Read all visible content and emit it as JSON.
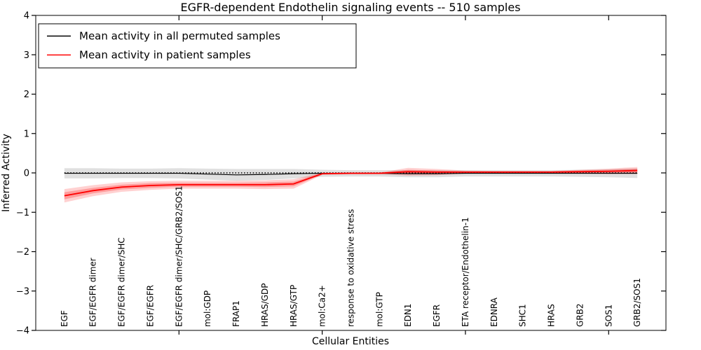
{
  "figure": {
    "title": "EGFR-dependent Endothelin signaling events -- 510 samples"
  },
  "chart_data": {
    "type": "line",
    "title": "EGFR-dependent Endothelin signaling events -- 510 samples",
    "xlabel": "Cellular Entities",
    "ylabel": "Inferred Activity",
    "xlim": [
      0,
      22
    ],
    "ylim": [
      -4,
      4
    ],
    "grid": false,
    "legend_position": "upper left",
    "yticks": [
      -4,
      -3,
      -2,
      -1,
      0,
      1,
      2,
      3,
      4
    ],
    "ytick_labels": [
      "−4",
      "−3",
      "−2",
      "−1",
      "0",
      "1",
      "2",
      "3",
      "4"
    ],
    "xtick_positions": [
      5,
      10,
      15,
      20
    ],
    "categories": [
      "EGF",
      "EGF/EGFR dimer",
      "EGF/EGFR dimer/SHC",
      "EGF/EGFR",
      "EGF/EGFR dimer/SHC/GRB2/SOS1",
      "mol:GDP",
      "FRAP1",
      "HRAS/GDP",
      "HRAS/GTP",
      "mol:Ca2+",
      "response to oxidative stress",
      "mol:GTP",
      "EDN1",
      "EGFR",
      "ETA receptor/Endothelin-1",
      "EDNRA",
      "SHC1",
      "HRAS",
      "GRB2",
      "SOS1",
      "GRB2/SOS1"
    ],
    "zero_line": {
      "y": 0,
      "style": "dotted",
      "color": "#000000"
    },
    "series": [
      {
        "name": "Mean activity in all permuted samples",
        "color": "#000000",
        "band_color": "#bbbbbb",
        "band_opacity": 0.45,
        "values": [
          -0.01,
          -0.01,
          -0.01,
          -0.01,
          -0.01,
          -0.03,
          -0.05,
          -0.04,
          -0.02,
          -0.01,
          -0.01,
          -0.01,
          -0.02,
          -0.02,
          -0.01,
          -0.01,
          -0.01,
          -0.01,
          -0.01,
          -0.01,
          -0.01
        ],
        "band_half_width": [
          0.13,
          0.13,
          0.12,
          0.12,
          0.13,
          0.14,
          0.15,
          0.14,
          0.12,
          0.09,
          0.08,
          0.08,
          0.09,
          0.09,
          0.08,
          0.08,
          0.08,
          0.08,
          0.09,
          0.1,
          0.12
        ]
      },
      {
        "name": "Mean activity in patient samples",
        "color": "#ff0000",
        "band_color": "#ff0000",
        "band_outer_opacity": 0.18,
        "band_inner_opacity": 0.25,
        "values": [
          -0.58,
          -0.45,
          -0.36,
          -0.32,
          -0.3,
          -0.3,
          -0.3,
          -0.3,
          -0.28,
          -0.02,
          -0.01,
          -0.01,
          0.03,
          0.02,
          0.02,
          0.02,
          0.02,
          0.02,
          0.03,
          0.04,
          0.06
        ],
        "band_outer_half_width": [
          0.17,
          0.14,
          0.12,
          0.11,
          0.1,
          0.1,
          0.1,
          0.11,
          0.12,
          0.03,
          0.02,
          0.02,
          0.1,
          0.08,
          0.04,
          0.03,
          0.03,
          0.03,
          0.05,
          0.07,
          0.09
        ],
        "band_inner_half_width": [
          0.09,
          0.07,
          0.06,
          0.06,
          0.05,
          0.05,
          0.05,
          0.06,
          0.06,
          0.02,
          0.01,
          0.01,
          0.05,
          0.04,
          0.02,
          0.02,
          0.02,
          0.02,
          0.03,
          0.04,
          0.05
        ]
      }
    ]
  }
}
